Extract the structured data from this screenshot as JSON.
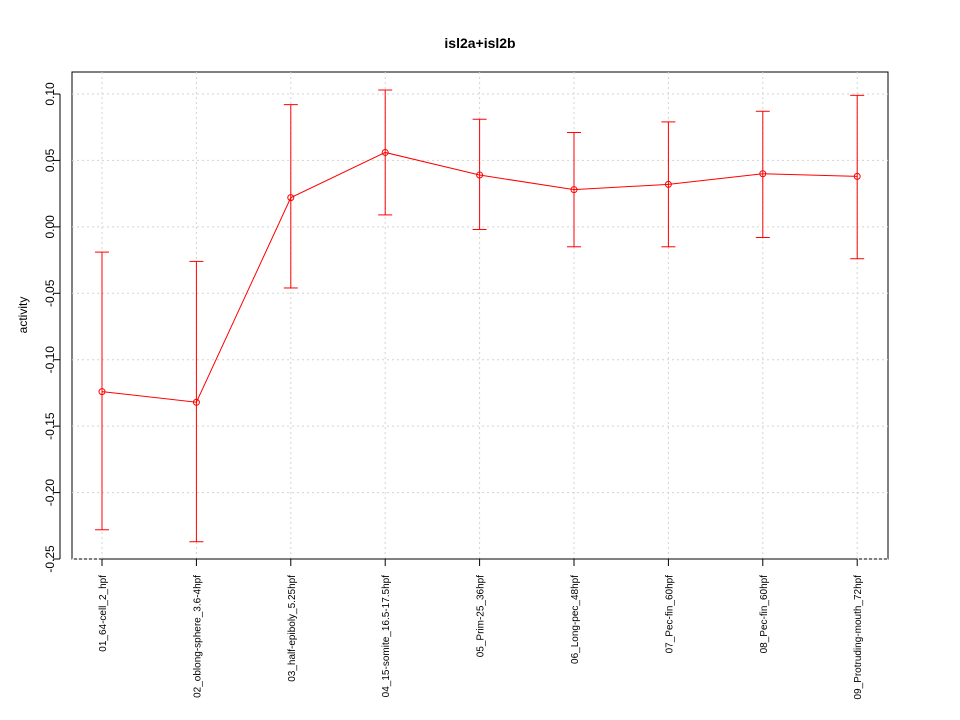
{
  "chart_data": {
    "type": "line",
    "title": "isl2a+isl2b",
    "xlabel": "",
    "ylabel": "activity",
    "categories": [
      "01_64-cell_2_hpf",
      "02_oblong-sphere_3.6-4hpf",
      "03_half-epiboly_5.25hpf",
      "04_15-somite_16.5-17.5hpf",
      "05_Prim-25_36hpf",
      "06_Long-pec_48hpf",
      "07_Pec-fin_60hpf",
      "08_Pec-fin_60hpf",
      "09_Protruding-mouth_72hpf"
    ],
    "series": [
      {
        "values": [
          -0.124,
          -0.132,
          0.022,
          0.056,
          0.039,
          0.028,
          0.032,
          0.04,
          0.038
        ],
        "upper": [
          -0.019,
          -0.026,
          0.092,
          0.103,
          0.081,
          0.071,
          0.079,
          0.087,
          0.099
        ],
        "lower": [
          -0.228,
          -0.237,
          -0.046,
          0.009,
          -0.002,
          -0.015,
          -0.015,
          -0.008,
          -0.024
        ]
      }
    ],
    "yticks": [
      "-0.25",
      "-0.20",
      "-0.15",
      "-0.10",
      "-0.05",
      "0.00",
      "0.05",
      "0.10"
    ],
    "ylim": [
      -0.25,
      0.1
    ],
    "grid": true,
    "color": "#ff0000"
  }
}
